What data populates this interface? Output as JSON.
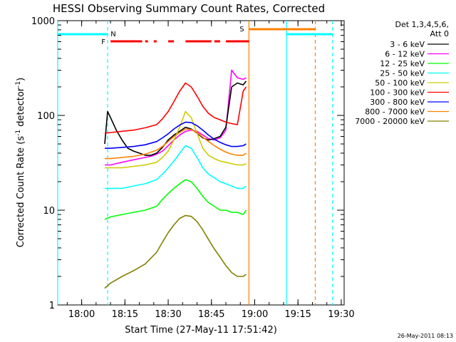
{
  "chart_data": {
    "type": "line",
    "title": "HESSI Observing Summary Count Rates, Corrected",
    "xlabel": "Start Time (27-May-11 17:51:42)",
    "ylabel_main": "Corrected Count Rate (s",
    "ylabel_sup1": "-1",
    "ylabel_mid": " detector",
    "ylabel_sup2": "-1",
    "ylabel_end": ")",
    "y_scale": "log",
    "xlim": [
      "17:51:42",
      "19:31:00"
    ],
    "ylim": [
      1,
      1000
    ],
    "x_ticks": [
      "18:00",
      "18:15",
      "18:30",
      "18:45",
      "19:00",
      "19:15",
      "19:30"
    ],
    "y_ticks": [
      "1",
      "10",
      "100",
      "1000"
    ],
    "legend_header": [
      "Det 1,3,4,5,6,",
      "Att 0"
    ],
    "legend_position": "right",
    "date_stamp": "26-May-2011 08:13",
    "series": [
      {
        "name": "3 - 6 keV",
        "color": "#000000",
        "x": [
          "18:08",
          "18:09",
          "18:10",
          "18:12",
          "18:14",
          "18:16",
          "18:18",
          "18:20",
          "18:22",
          "18:24",
          "18:26",
          "18:28",
          "18:30",
          "18:32",
          "18:34",
          "18:36",
          "18:38",
          "18:40",
          "18:42",
          "18:44",
          "18:46",
          "18:48",
          "18:50",
          "18:52",
          "18:54",
          "18:56",
          "18:57"
        ],
        "y": [
          50,
          110,
          95,
          70,
          55,
          45,
          42,
          40,
          38,
          38,
          40,
          46,
          55,
          62,
          68,
          75,
          72,
          65,
          58,
          55,
          57,
          60,
          75,
          200,
          220,
          210,
          230
        ]
      },
      {
        "name": "6 - 12 keV",
        "color": "#ff00ff",
        "x": [
          "18:08",
          "18:10",
          "18:12",
          "18:14",
          "18:16",
          "18:18",
          "18:20",
          "18:22",
          "18:24",
          "18:26",
          "18:28",
          "18:30",
          "18:32",
          "18:34",
          "18:36",
          "18:38",
          "18:40",
          "18:42",
          "18:44",
          "18:46",
          "18:48",
          "18:50",
          "18:52",
          "18:54",
          "18:56",
          "18:57"
        ],
        "y": [
          30,
          30,
          31,
          32,
          33,
          34,
          35,
          36,
          37,
          39,
          42,
          48,
          55,
          62,
          68,
          70,
          68,
          62,
          57,
          55,
          58,
          70,
          300,
          250,
          240,
          250
        ]
      },
      {
        "name": "12 - 25 keV",
        "color": "#00ff00",
        "x": [
          "18:08",
          "18:10",
          "18:14",
          "18:18",
          "18:22",
          "18:26",
          "18:28",
          "18:30",
          "18:32",
          "18:34",
          "18:36",
          "18:38",
          "18:40",
          "18:42",
          "18:44",
          "18:46",
          "18:48",
          "18:50",
          "18:52",
          "18:54",
          "18:56",
          "18:57"
        ],
        "y": [
          8,
          8.5,
          9,
          9.5,
          10,
          11,
          13,
          15,
          17,
          19,
          21,
          20,
          17,
          14,
          12,
          11,
          10,
          10,
          9.5,
          9.5,
          9,
          10
        ]
      },
      {
        "name": "25 - 50 keV",
        "color": "#00ffff",
        "x": [
          "18:08",
          "18:10",
          "18:14",
          "18:18",
          "18:22",
          "18:26",
          "18:28",
          "18:30",
          "18:32",
          "18:34",
          "18:36",
          "18:38",
          "18:40",
          "18:42",
          "18:44",
          "18:46",
          "18:48",
          "18:50",
          "18:52",
          "18:54",
          "18:56",
          "18:57"
        ],
        "y": [
          17,
          17,
          17,
          18,
          19,
          21,
          24,
          28,
          33,
          40,
          48,
          45,
          36,
          28,
          24,
          22,
          20,
          19,
          18,
          17,
          17,
          18
        ]
      },
      {
        "name": "50 - 100 keV",
        "color": "#cccc00",
        "x": [
          "18:08",
          "18:10",
          "18:14",
          "18:18",
          "18:22",
          "18:26",
          "18:28",
          "18:30",
          "18:32",
          "18:34",
          "18:36",
          "18:38",
          "18:40",
          "18:42",
          "18:44",
          "18:46",
          "18:48",
          "18:50",
          "18:52",
          "18:54",
          "18:56",
          "18:57"
        ],
        "y": [
          28,
          28,
          28,
          29,
          30,
          32,
          36,
          42,
          55,
          75,
          110,
          95,
          65,
          45,
          38,
          35,
          33,
          32,
          31,
          30,
          30,
          31
        ]
      },
      {
        "name": "100 - 300 keV",
        "color": "#ff0000",
        "x": [
          "18:08",
          "18:10",
          "18:14",
          "18:18",
          "18:22",
          "18:26",
          "18:28",
          "18:30",
          "18:32",
          "18:34",
          "18:36",
          "18:38",
          "18:40",
          "18:42",
          "18:44",
          "18:46",
          "18:48",
          "18:50",
          "18:52",
          "18:54",
          "18:56",
          "18:57"
        ],
        "y": [
          65,
          66,
          68,
          70,
          74,
          80,
          92,
          110,
          140,
          180,
          220,
          200,
          160,
          125,
          105,
          95,
          90,
          85,
          82,
          80,
          180,
          200
        ]
      },
      {
        "name": "300 - 800 keV",
        "color": "#0000ff",
        "x": [
          "18:08",
          "18:10",
          "18:14",
          "18:18",
          "18:22",
          "18:26",
          "18:28",
          "18:30",
          "18:32",
          "18:34",
          "18:36",
          "18:38",
          "18:40",
          "18:42",
          "18:44",
          "18:46",
          "18:48",
          "18:50",
          "18:52",
          "18:54",
          "18:56",
          "18:57"
        ],
        "y": [
          45,
          45,
          46,
          47,
          49,
          53,
          58,
          64,
          72,
          79,
          85,
          84,
          78,
          70,
          62,
          56,
          52,
          49,
          47,
          47,
          48,
          50
        ]
      },
      {
        "name": "800 - 7000 keV",
        "color": "#ff8000",
        "x": [
          "18:08",
          "18:10",
          "18:14",
          "18:18",
          "18:22",
          "18:26",
          "18:28",
          "18:30",
          "18:32",
          "18:34",
          "18:36",
          "18:38",
          "18:40",
          "18:42",
          "18:44",
          "18:46",
          "18:48",
          "18:50",
          "18:52",
          "18:54",
          "18:56",
          "18:57"
        ],
        "y": [
          35,
          35,
          36,
          37,
          39,
          43,
          47,
          53,
          60,
          66,
          72,
          71,
          66,
          59,
          53,
          48,
          44,
          41,
          39,
          38,
          38,
          40
        ]
      },
      {
        "name": "7000 - 20000 keV",
        "color": "#808000",
        "x": [
          "18:08",
          "18:10",
          "18:14",
          "18:18",
          "18:22",
          "18:26",
          "18:28",
          "18:30",
          "18:32",
          "18:34",
          "18:36",
          "18:38",
          "18:40",
          "18:42",
          "18:44",
          "18:46",
          "18:48",
          "18:50",
          "18:52",
          "18:54",
          "18:56",
          "18:57"
        ],
        "y": [
          1.5,
          1.7,
          2.0,
          2.3,
          2.7,
          3.6,
          4.6,
          5.8,
          7.0,
          8.2,
          8.8,
          8.6,
          7.6,
          6.2,
          4.9,
          3.9,
          3.2,
          2.6,
          2.2,
          2.0,
          2.0,
          2.1
        ]
      }
    ],
    "flags": [
      {
        "label": "N",
        "color": "#00ffff",
        "segments": [
          [
            "17:51:42",
            "18:09"
          ],
          [
            "19:11",
            "19:27"
          ]
        ]
      },
      {
        "label": "S",
        "color": "#ff8000",
        "segments": [
          [
            "18:58",
            "19:21"
          ]
        ]
      },
      {
        "label": "F",
        "color": "#ff0000",
        "segments": [
          [
            "18:10",
            "18:21"
          ],
          [
            "18:22",
            "18:23"
          ],
          [
            "18:25",
            "18:26"
          ],
          [
            "18:30",
            "18:32"
          ],
          [
            "18:36",
            "18:45"
          ],
          [
            "18:46",
            "18:48"
          ],
          [
            "18:50",
            "18:58"
          ]
        ]
      }
    ],
    "markers": [
      {
        "time": "17:51:42",
        "color": "#00ffff",
        "style": "solid"
      },
      {
        "time": "18:09",
        "color": "#00ffff",
        "style": "dashed"
      },
      {
        "time": "18:58",
        "color": "#ff8000",
        "style": "solid"
      },
      {
        "time": "19:11",
        "color": "#00ffff",
        "style": "solid"
      },
      {
        "time": "19:21",
        "color": "#ff8000",
        "style": "dashed"
      },
      {
        "time": "19:27",
        "color": "#00ffff",
        "style": "dashed"
      }
    ]
  }
}
